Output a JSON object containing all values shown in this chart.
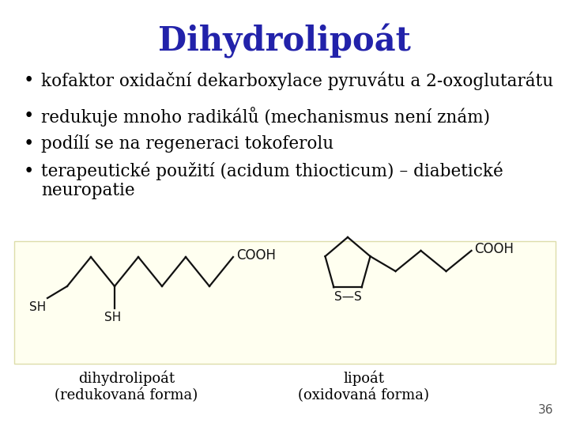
{
  "title": "Dihydrolipoát",
  "title_color": "#2222aa",
  "title_fontsize": 30,
  "background_color": "#ffffff",
  "bullet_color": "#000000",
  "bullet_fontsize": 15.5,
  "bullets": [
    "kofaktor oxidační dekarboxylace pyruvátu a 2-oxoglutarátu",
    "redukuje mnoho radikálů (mechanismus není znám)",
    "podílí se na regeneraci tokoferolu",
    "terapeutické použití (acidum thiocticum) – diabetické"
  ],
  "bullet4_line2": "    neuropatie",
  "box_color": "#fffff0",
  "caption_left": "dihydrolipoát\n(redukovaná forma)",
  "caption_right": "lipoát\n(oxidovaná forma)",
  "caption_fontsize": 13,
  "page_number": "36",
  "mol_color": "#111111",
  "mol_lw": 1.6
}
